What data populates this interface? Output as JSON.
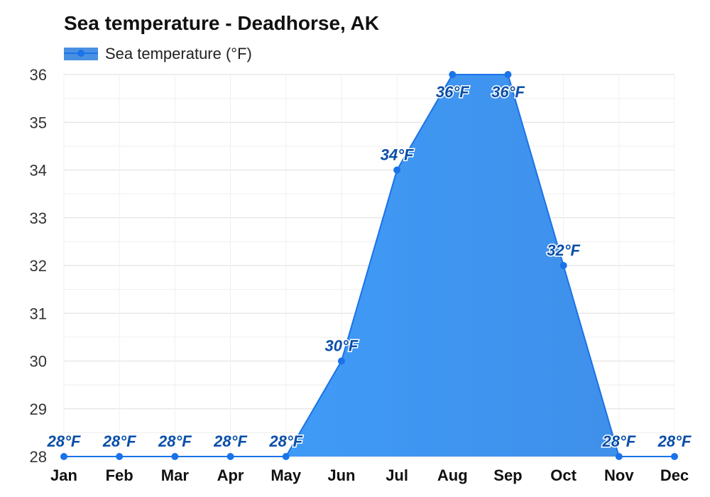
{
  "chart_data": {
    "type": "area",
    "title": "Sea temperature - Deadhorse, AK",
    "categories": [
      "Jan",
      "Feb",
      "Mar",
      "Apr",
      "May",
      "Jun",
      "Jul",
      "Aug",
      "Sep",
      "Oct",
      "Nov",
      "Dec"
    ],
    "series": [
      {
        "name": "Sea temperature (°F)",
        "values": [
          28,
          28,
          28,
          28,
          28,
          30,
          34,
          36,
          36,
          32,
          28,
          28
        ],
        "labels": [
          "28°F",
          "28°F",
          "28°F",
          "28°F",
          "28°F",
          "30°F",
          "34°F",
          "36°F",
          "36°F",
          "32°F",
          "28°F",
          "28°F"
        ]
      }
    ],
    "xlabel": "",
    "ylabel": "",
    "ylim": [
      28,
      36
    ],
    "yticks": [
      "28",
      "29",
      "30",
      "31",
      "32",
      "33",
      "34",
      "35",
      "36"
    ],
    "grid": true,
    "legend": "top-left",
    "colors": {
      "line": "#1a73e8",
      "fill_top": "#3399ff",
      "fill_bottom": "#4a90e2",
      "label": "#0a4fa8",
      "grid": "#e3e3e3"
    }
  }
}
